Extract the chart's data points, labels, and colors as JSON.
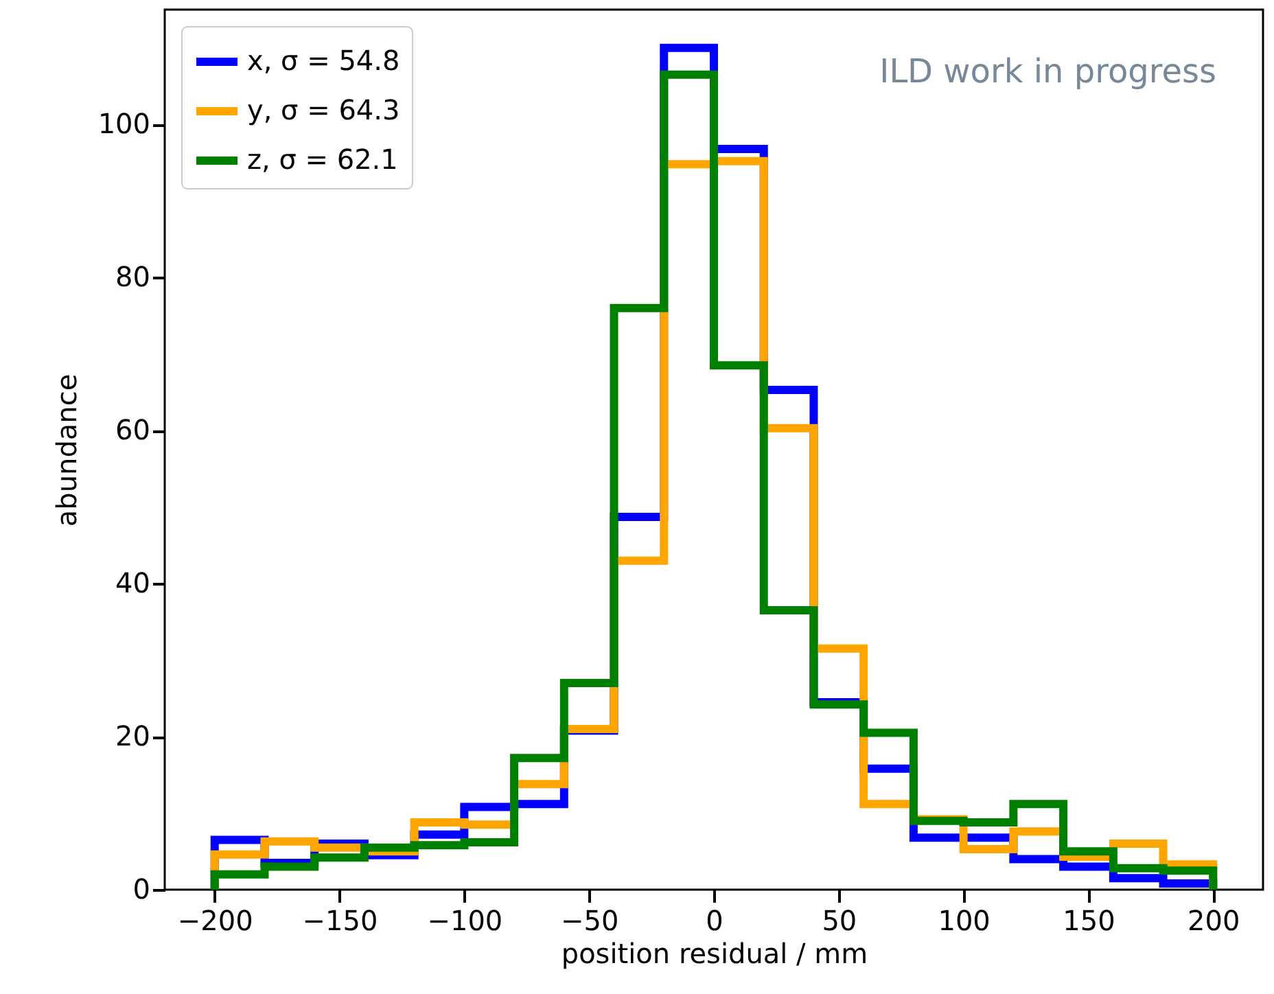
{
  "chart_data": {
    "type": "histogram",
    "xlabel": "position residual / mm",
    "ylabel": "abundance",
    "annotations": [
      "ILD work in progress"
    ],
    "bins": [
      -200,
      -180,
      -160,
      -140,
      -120,
      -100,
      -80,
      -60,
      -40,
      -20,
      0,
      20,
      40,
      60,
      80,
      100,
      120,
      140,
      160,
      180,
      200
    ],
    "series": [
      {
        "name": "x, σ = 54.8",
        "color": "#0000ff",
        "values": [
          6.5,
          3.5,
          6.0,
          4.5,
          7.2,
          10.8,
          11.2,
          20.8,
          48.7,
          110,
          96.8,
          65.3,
          24.5,
          15.8,
          6.8,
          6.8,
          4.0,
          3.0,
          1.5,
          0.8
        ]
      },
      {
        "name": "y, σ = 64.3",
        "color": "#ffa500",
        "values": [
          4.6,
          6.3,
          5.5,
          5.0,
          8.8,
          8.5,
          13.8,
          21,
          43,
          94.8,
          95.2,
          60.3,
          31.5,
          11.2,
          9.2,
          5.3,
          7.6,
          4.3,
          6.0,
          3.3
        ]
      },
      {
        "name": "z, σ = 62.1",
        "color": "#008000",
        "values": [
          2.0,
          3.0,
          4.2,
          5.5,
          5.8,
          6.2,
          17.2,
          27,
          76,
          106.5,
          68.5,
          36.5,
          24.2,
          20.5,
          9.0,
          8.8,
          11.2,
          5.0,
          2.8,
          2.5
        ]
      }
    ],
    "xlim": [
      -220,
      220
    ],
    "ylim": [
      0,
      115
    ],
    "xticks": [
      -200,
      -150,
      -100,
      -50,
      0,
      50,
      100,
      150,
      200
    ],
    "yticks": [
      0,
      20,
      40,
      60,
      80,
      100
    ],
    "grid": false,
    "legend": "top left"
  }
}
